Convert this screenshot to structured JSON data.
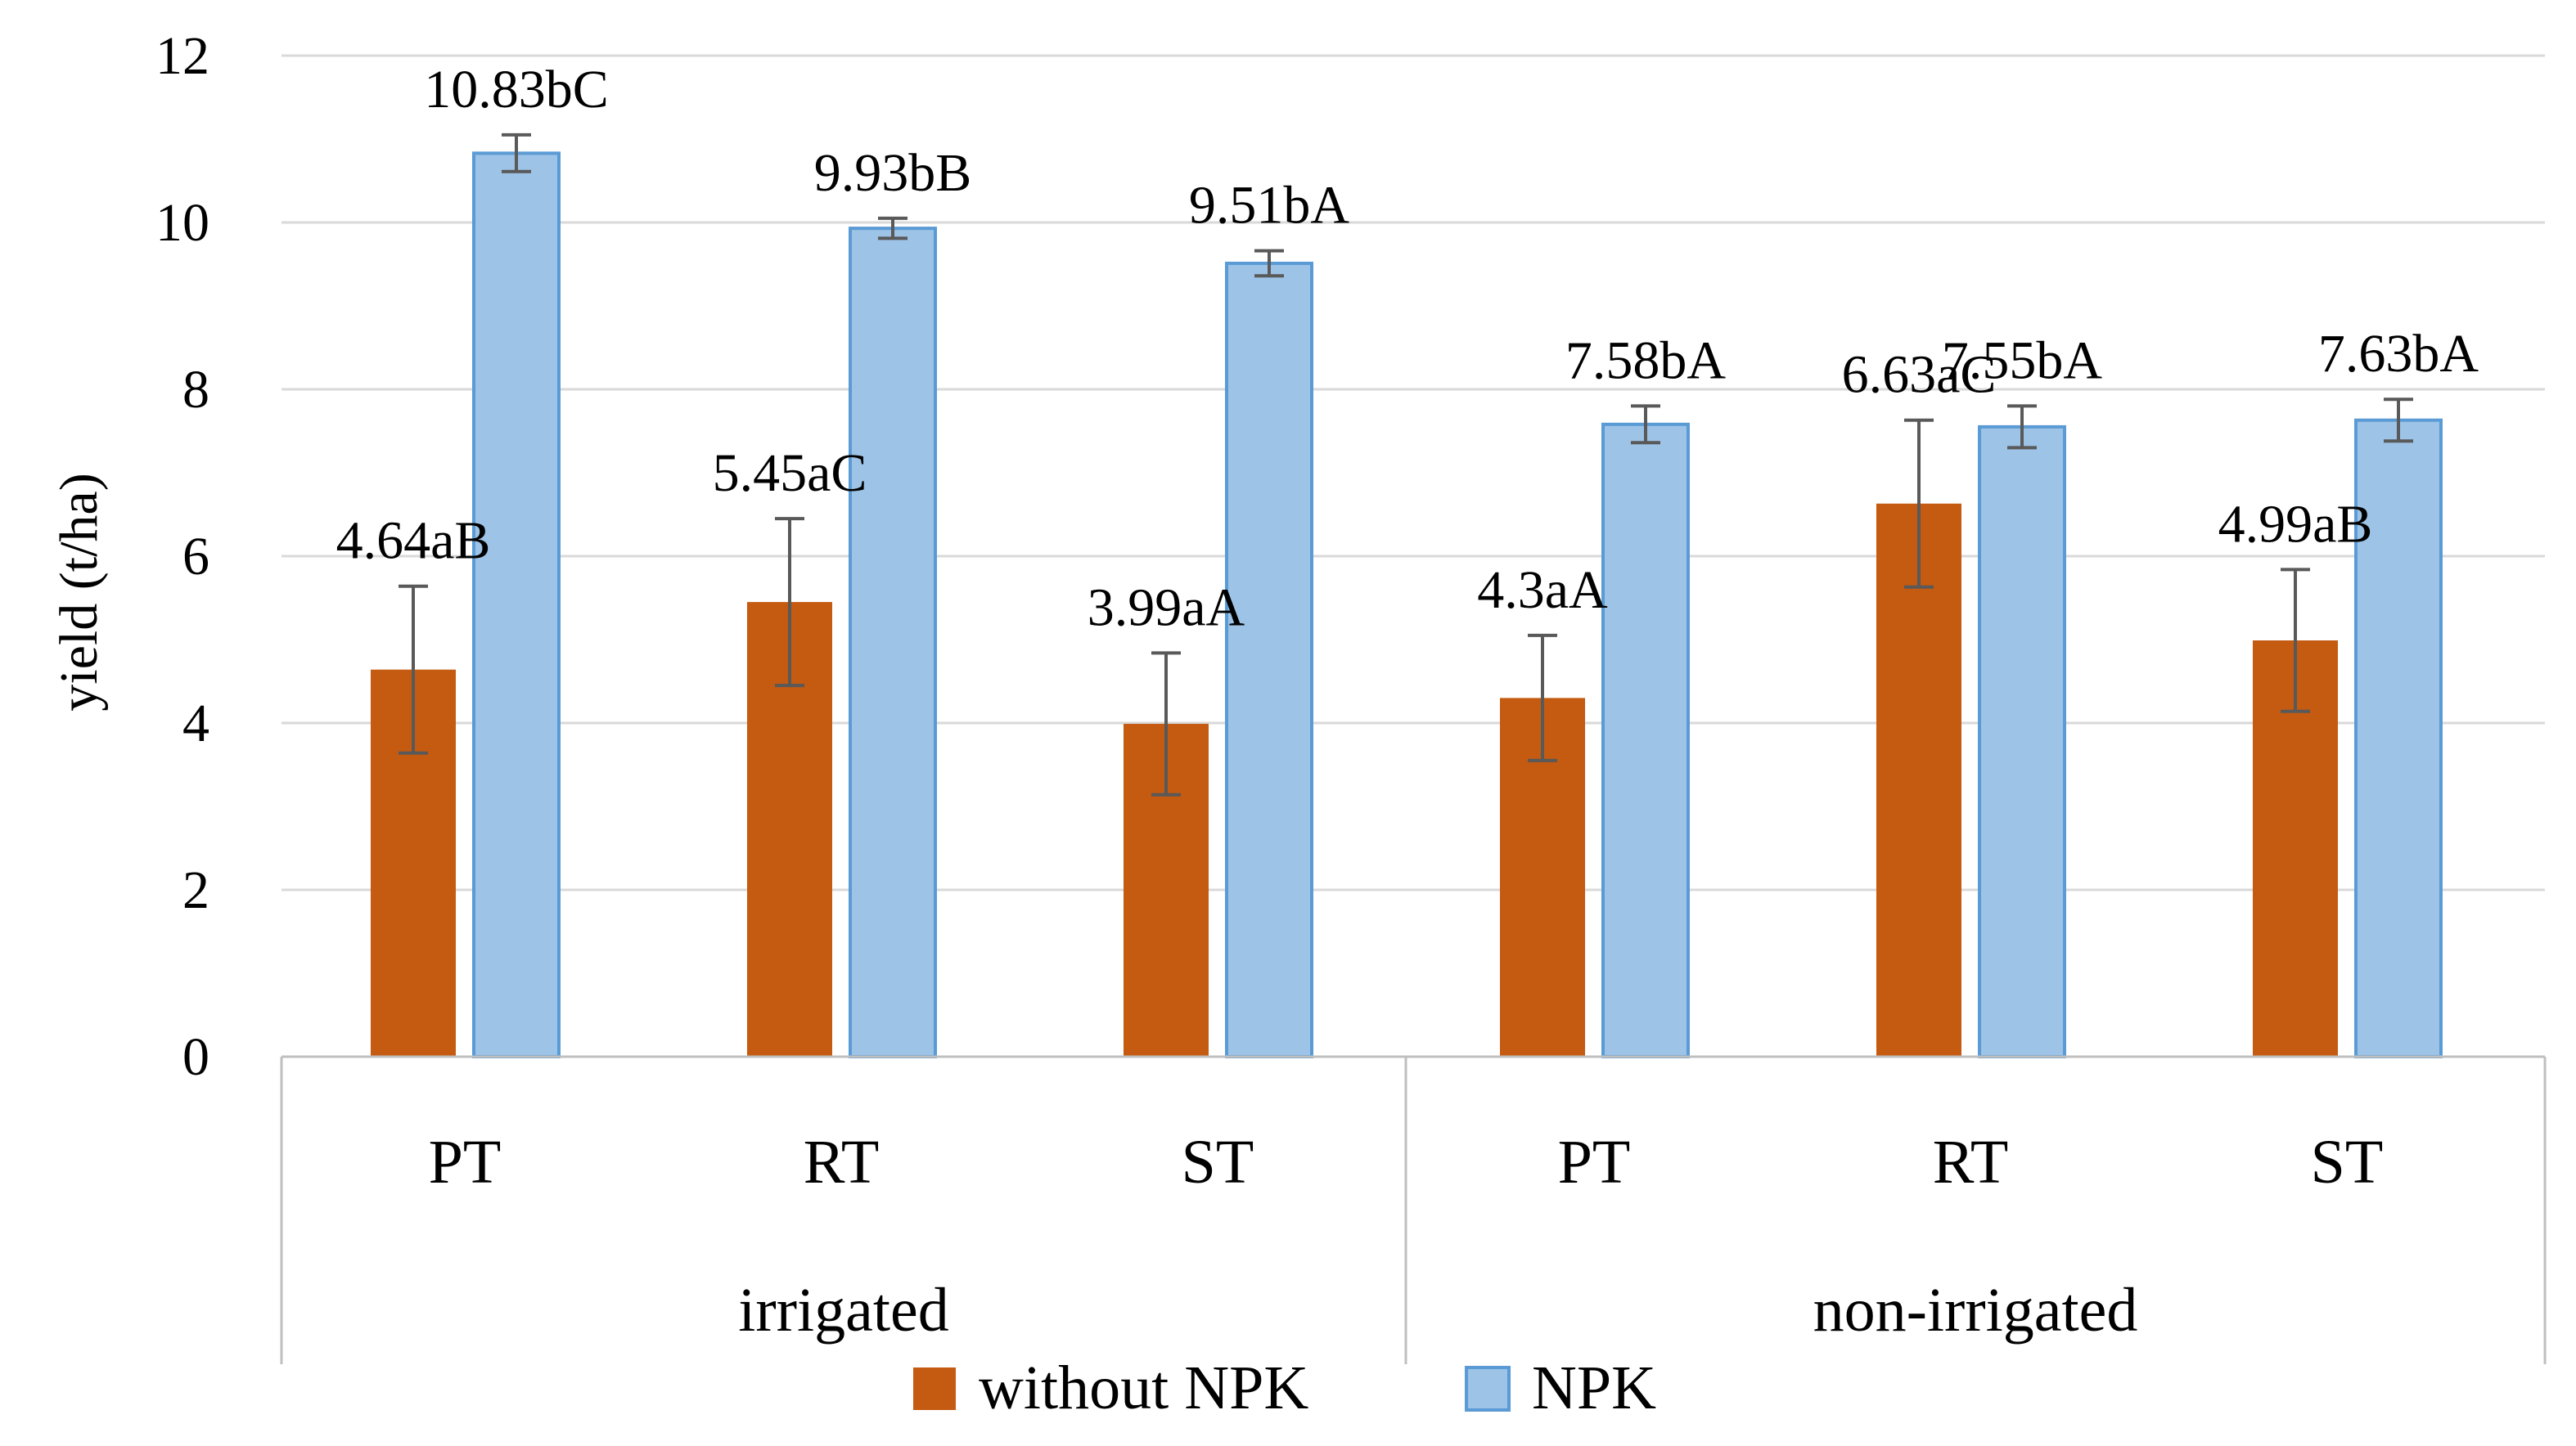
{
  "chart_data": {
    "type": "bar",
    "title": "",
    "ylabel": "yield (t/ha)",
    "xlabel": "",
    "ylim": [
      0,
      12
    ],
    "yticks": [
      0,
      2,
      4,
      6,
      8,
      10,
      12
    ],
    "ytick_labels": [
      "0",
      "2",
      "4",
      "6",
      "8",
      "10",
      "12"
    ],
    "grid": true,
    "groups": [
      {
        "name": "irrigated",
        "categories": [
          "PT",
          "RT",
          "ST"
        ]
      },
      {
        "name": "non-irrigated",
        "categories": [
          "PT",
          "RT",
          "ST"
        ]
      }
    ],
    "categories": [
      "PT",
      "RT",
      "ST",
      "PT",
      "RT",
      "ST"
    ],
    "series": [
      {
        "name": "without NPK",
        "color": "#C55A11",
        "values": [
          4.64,
          5.45,
          3.99,
          4.3,
          6.63,
          4.99
        ],
        "errors": [
          1.0,
          1.0,
          0.85,
          0.75,
          1.0,
          0.85
        ],
        "labels": [
          "4.64aB",
          "5.45aC",
          "3.99aA",
          "4.3aA",
          "6.63aC",
          "4.99aB"
        ]
      },
      {
        "name": "NPK",
        "color": "#9DC3E6",
        "edge_color": "#5B9BD5",
        "values": [
          10.83,
          9.93,
          9.51,
          7.58,
          7.55,
          7.63
        ],
        "errors": [
          0.22,
          0.12,
          0.15,
          0.22,
          0.25,
          0.25
        ],
        "labels": [
          "10.83bC",
          "9.93bB",
          "9.51bA",
          "7.58bA",
          "7.55bA",
          "7.63bA"
        ]
      }
    ],
    "legend": {
      "position": "bottom-center",
      "entries": [
        "without NPK",
        "NPK"
      ]
    },
    "colors": {
      "grid": "#D9D9D9",
      "axis": "#BFBFBF",
      "error_bar": "#595959"
    }
  }
}
